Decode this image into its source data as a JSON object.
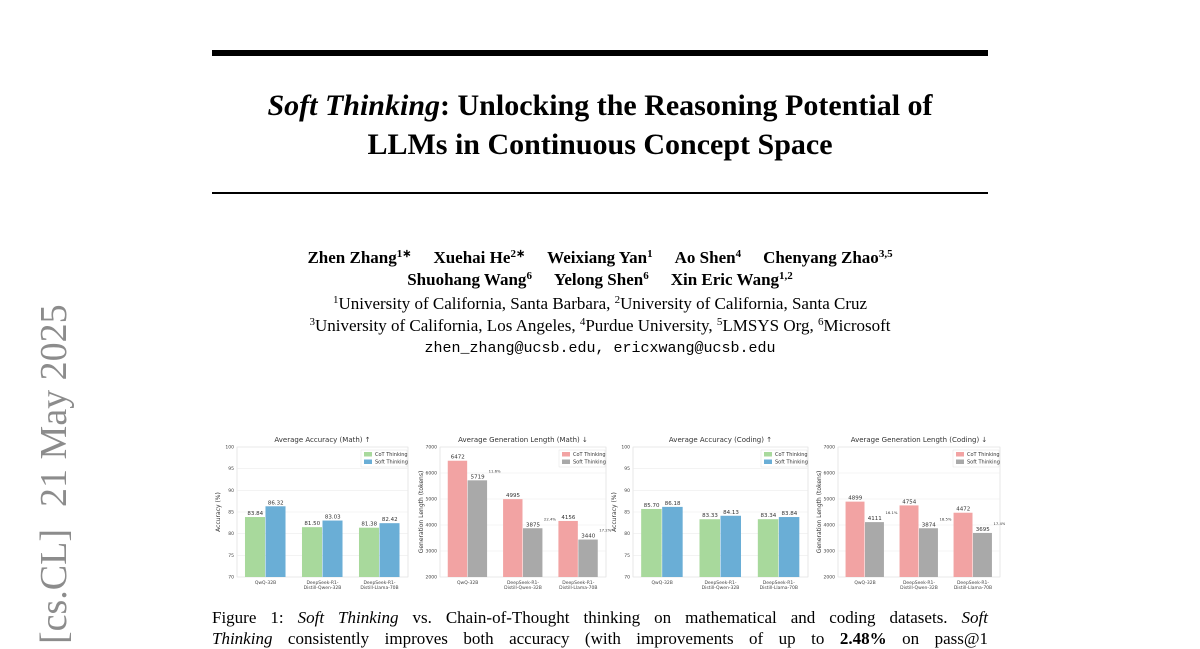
{
  "sidebar": {
    "category": "[cs.CL]",
    "date": "21 May 2025"
  },
  "title": {
    "italic": "Soft Thinking",
    "rest": ": Unlocking the Reasoning Potential of",
    "line2": "LLMs in Continuous Concept Space"
  },
  "authors": [
    [
      {
        "name": "Zhen Zhang",
        "sup": "1∗"
      },
      {
        "name": "Xuehai He",
        "sup": "2∗"
      },
      {
        "name": "Weixiang Yan",
        "sup": "1"
      },
      {
        "name": "Ao Shen",
        "sup": "4"
      },
      {
        "name": "Chenyang Zhao",
        "sup": "3,5"
      }
    ],
    [
      {
        "name": "Shuohang Wang",
        "sup": "6"
      },
      {
        "name": "Yelong Shen",
        "sup": "6"
      },
      {
        "name": "Xin Eric Wang",
        "sup": "1,2"
      }
    ]
  ],
  "affiliations": [
    [
      {
        "sup": "1",
        "text": "University of California, Santa Barbara,"
      },
      {
        "sup": "2",
        "text": "University of California, Santa Cruz"
      }
    ],
    [
      {
        "sup": "3",
        "text": "University of California, Los Angeles,"
      },
      {
        "sup": "4",
        "text": "Purdue University,"
      },
      {
        "sup": "5",
        "text": "LMSYS Org,"
      },
      {
        "sup": "6",
        "text": "Microsoft"
      }
    ]
  ],
  "emails": [
    "zhen_zhang@ucsb.edu,",
    "ericxwang@ucsb.edu"
  ],
  "chart_data": [
    {
      "type": "bar",
      "title": "Average Accuracy (Math) ↑",
      "ylabel": "Accuracy (%)",
      "categories": [
        "QwQ-32B",
        "DeepSeek-R1-Distill-Qwen-32B",
        "DeepSeek-R1-Distill-Llama-70B"
      ],
      "series": [
        {
          "name": "CoT Thinking",
          "color": "#a8d99c",
          "values": [
            83.84,
            81.5,
            81.38
          ],
          "value_labels": [
            "83.84",
            "81.50",
            "81.38"
          ]
        },
        {
          "name": "Soft Thinking",
          "color": "#6aaed6",
          "values": [
            86.32,
            83.03,
            82.42
          ],
          "value_labels": [
            "86.32",
            "83.03",
            "82.42"
          ]
        }
      ],
      "ylim": [
        70,
        100
      ],
      "yticks": [
        70,
        75,
        80,
        85,
        90,
        95,
        100
      ],
      "grid": true,
      "legend": "upper right"
    },
    {
      "type": "bar",
      "title": "Average Generation Length (Math) ↓",
      "ylabel": "Generation Length (tokens)",
      "categories": [
        "QwQ-32B",
        "DeepSeek-R1-Distill-Qwen-32B",
        "DeepSeek-R1-Distill-Llama-70B"
      ],
      "series": [
        {
          "name": "CoT Thinking",
          "color": "#f2a3a3",
          "values": [
            6472,
            4995,
            4156
          ]
        },
        {
          "name": "Soft Thinking",
          "color": "#a9a9a9",
          "values": [
            5719,
            3875,
            3440
          ]
        }
      ],
      "reduction_labels": [
        "11.6%",
        "22.4%",
        "17.2%"
      ],
      "ylim": [
        2000,
        7000
      ],
      "yticks": [
        2000,
        3000,
        4000,
        5000,
        6000,
        7000
      ],
      "grid": true,
      "legend": "upper right"
    },
    {
      "type": "bar",
      "title": "Average Accuracy (Coding) ↑",
      "ylabel": "Accuracy (%)",
      "categories": [
        "QwQ-32B",
        "DeepSeek-R1-Distill-Qwen-32B",
        "DeepSeek-R1-Distill-Llama-70B"
      ],
      "series": [
        {
          "name": "CoT Thinking",
          "color": "#a8d99c",
          "values": [
            85.7,
            83.33,
            83.34
          ],
          "value_labels": [
            "85.70",
            "83.33",
            "83.34"
          ]
        },
        {
          "name": "Soft Thinking",
          "color": "#6aaed6",
          "values": [
            86.18,
            84.13,
            83.84
          ],
          "value_labels": [
            "86.18",
            "84.13",
            "83.84"
          ]
        }
      ],
      "ylim": [
        70,
        100
      ],
      "yticks": [
        70,
        75,
        80,
        85,
        90,
        95,
        100
      ],
      "grid": true,
      "legend": "upper right"
    },
    {
      "type": "bar",
      "title": "Average Generation Length (Coding) ↓",
      "ylabel": "Generation Length (tokens)",
      "categories": [
        "QwQ-32B",
        "DeepSeek-R1-Distill-Qwen-32B",
        "DeepSeek-R1-Distill-Llama-70B"
      ],
      "series": [
        {
          "name": "CoT Thinking",
          "color": "#f2a3a3",
          "values": [
            4899,
            4754,
            4472
          ]
        },
        {
          "name": "Soft Thinking",
          "color": "#a9a9a9",
          "values": [
            4111,
            3874,
            3695
          ]
        }
      ],
      "reduction_labels": [
        "16.1%",
        "18.5%",
        "17.4%"
      ],
      "ylim": [
        2000,
        7000
      ],
      "yticks": [
        2000,
        3000,
        4000,
        5000,
        6000,
        7000
      ],
      "grid": true,
      "legend": "upper right"
    }
  ],
  "caption": [
    [
      {
        "text": "Figure 1: ",
        "style": "normal"
      },
      {
        "text": "Soft Thinking",
        "style": "italic"
      },
      {
        "text": " vs. Chain-of-Thought thinking on mathematical and coding datasets. ",
        "style": "normal"
      },
      {
        "text": "Soft",
        "style": "italic"
      }
    ],
    [
      {
        "text": "Thinking",
        "style": "italic"
      },
      {
        "text": " consistently improves both accuracy (with improvements of up to ",
        "style": "normal"
      },
      {
        "text": "2.48%",
        "style": "bold"
      },
      {
        "text": " on pass@1",
        "style": "normal"
      }
    ]
  ]
}
